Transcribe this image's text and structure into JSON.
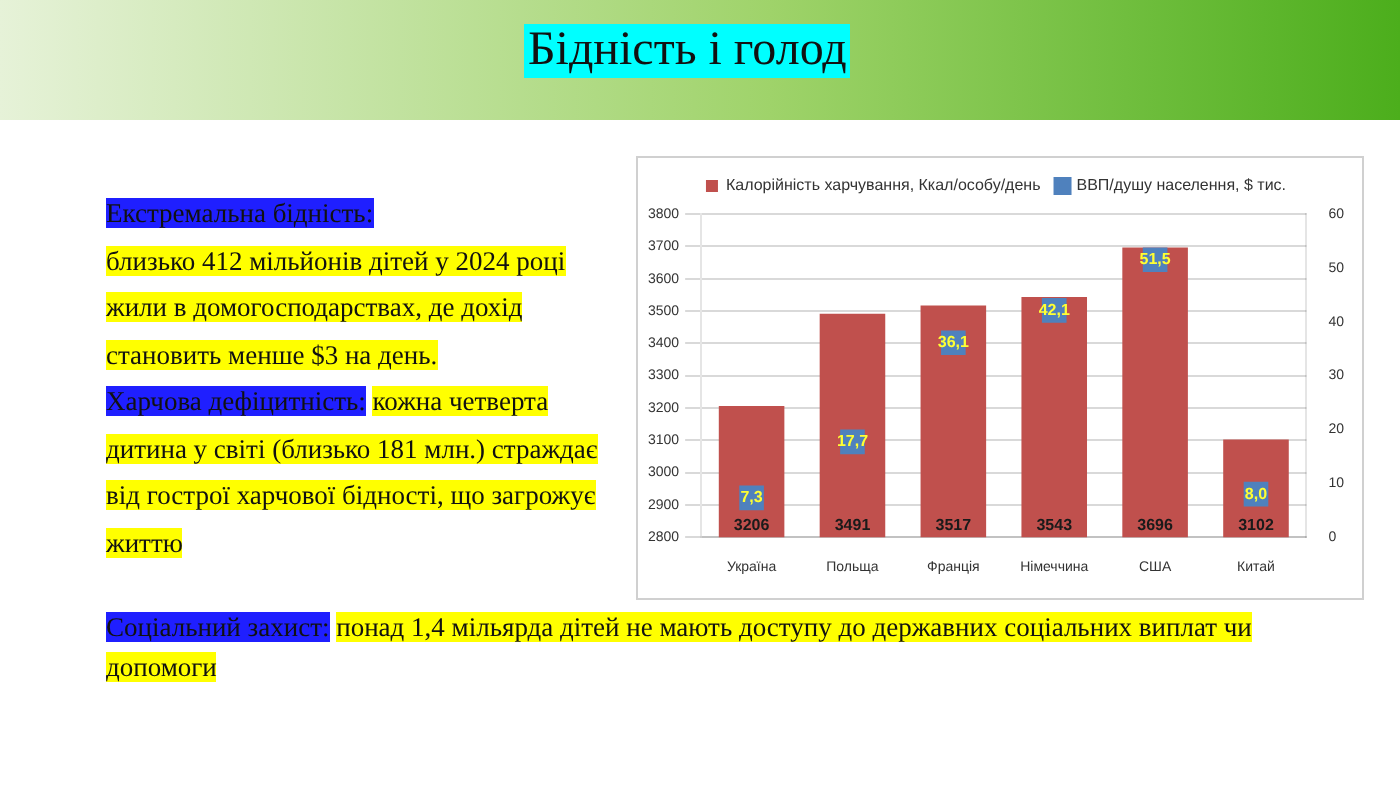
{
  "chart_data": {
    "type": "bar",
    "title": "Бідність і голод",
    "categories": [
      "Україна",
      "Польща",
      "Франція",
      "Німеччина",
      "США",
      "Китай"
    ],
    "series": [
      {
        "name": "Калорійність харчування, Ккал/особу/день",
        "color": "#c0504d",
        "values": [
          3206,
          3491,
          3517,
          3543,
          3696,
          3102
        ]
      },
      {
        "name": "ВВП/душу населення, $ тис.",
        "type": "scatter",
        "axis": "y2",
        "marker": "square",
        "color": "#4f81bd",
        "values": [
          7.3,
          17.7,
          36.1,
          42.1,
          51.5,
          8.0
        ],
        "value_labels": [
          "7,3",
          "17,7",
          "36,1",
          "42,1",
          "51,5",
          "8,0"
        ]
      }
    ],
    "ylim": [
      2800,
      3800
    ],
    "yticks": [
      2800,
      2900,
      3000,
      3100,
      3200,
      3300,
      3400,
      3500,
      3600,
      3700,
      3800
    ],
    "y2lim": [
      0,
      60
    ],
    "y2ticks": [
      0,
      10,
      20,
      30,
      40,
      50,
      60
    ],
    "grid": "y",
    "legend": "top",
    "data_labels": true,
    "annotations": [
      "Екстремальна бідність:",
      "близько 412 мільйонів дітей у 2024 році жили в домогосподарствах, де дохід становить менше $3 на день.",
      "Харчова дефіцитність:",
      "кожна четверта дитина у світі (близько 181 млн.) страждає від гострої харчової бідності, що загрожує життю",
      "Соціальний захист:",
      "понад 1,4 мільярда дітей не мають доступу до державних соціальних виплат чи допомоги"
    ]
  }
}
